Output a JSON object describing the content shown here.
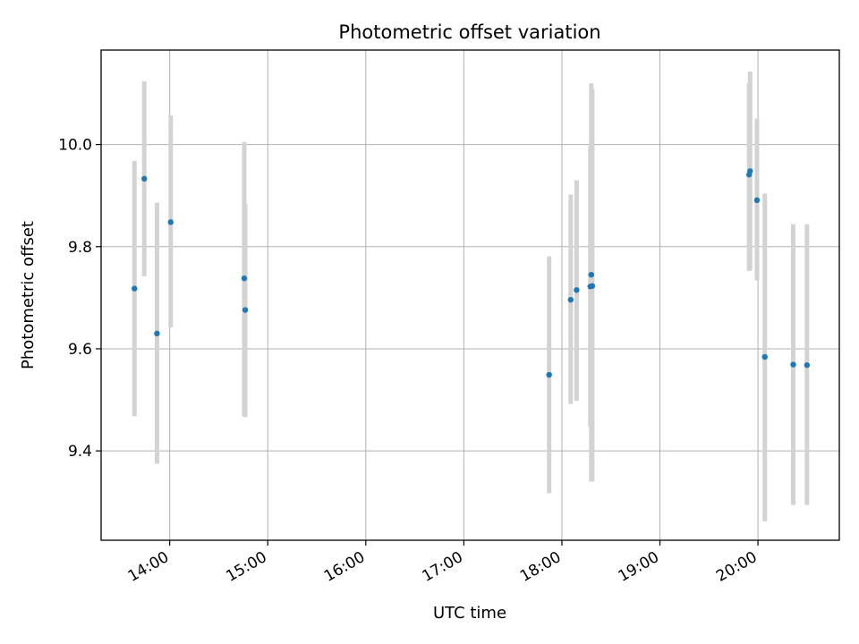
{
  "chart_data": {
    "type": "scatter",
    "title": "Photometric offset variation",
    "xlabel": "UTC time",
    "ylabel": "Photometric offset",
    "x_unit": "hours_utc",
    "xlim": [
      13.3,
      20.83
    ],
    "ylim": [
      9.225,
      10.185
    ],
    "grid": true,
    "x_ticks": [
      {
        "value": 14,
        "label": "14:00"
      },
      {
        "value": 15,
        "label": "15:00"
      },
      {
        "value": 16,
        "label": "16:00"
      },
      {
        "value": 17,
        "label": "17:00"
      },
      {
        "value": 18,
        "label": "18:00"
      },
      {
        "value": 19,
        "label": "19:00"
      },
      {
        "value": 20,
        "label": "20:00"
      }
    ],
    "y_ticks": [
      {
        "value": 9.4,
        "label": "9.4"
      },
      {
        "value": 9.6,
        "label": "9.6"
      },
      {
        "value": 9.8,
        "label": "9.8"
      },
      {
        "value": 10.0,
        "label": "10.0"
      }
    ],
    "colors": {
      "point": "#1f77b4",
      "errorbar": "#d3d3d3",
      "grid": "#b0b0b0"
    },
    "series": [
      {
        "name": "offset",
        "points": [
          {
            "x": 13.64,
            "y": 9.718,
            "err_low": 9.468,
            "err_high": 9.968
          },
          {
            "x": 13.74,
            "y": 9.933,
            "err_low": 9.742,
            "err_high": 10.124
          },
          {
            "x": 13.87,
            "y": 9.63,
            "err_low": 9.375,
            "err_high": 9.886
          },
          {
            "x": 14.01,
            "y": 9.848,
            "err_low": 9.642,
            "err_high": 10.057
          },
          {
            "x": 14.76,
            "y": 9.738,
            "err_low": 9.468,
            "err_high": 10.005
          },
          {
            "x": 14.77,
            "y": 9.676,
            "err_low": 9.466,
            "err_high": 9.883
          },
          {
            "x": 17.87,
            "y": 9.549,
            "err_low": 9.317,
            "err_high": 9.781
          },
          {
            "x": 18.09,
            "y": 9.696,
            "err_low": 9.492,
            "err_high": 9.902
          },
          {
            "x": 18.15,
            "y": 9.715,
            "err_low": 9.498,
            "err_high": 9.93
          },
          {
            "x": 18.29,
            "y": 9.722,
            "err_low": 9.447,
            "err_high": 9.995
          },
          {
            "x": 18.3,
            "y": 9.745,
            "err_low": 9.34,
            "err_high": 10.12
          },
          {
            "x": 18.31,
            "y": 9.723,
            "err_low": 9.34,
            "err_high": 10.108
          },
          {
            "x": 19.91,
            "y": 9.941,
            "err_low": 9.752,
            "err_high": 10.12
          },
          {
            "x": 19.92,
            "y": 9.948,
            "err_low": 9.755,
            "err_high": 10.143
          },
          {
            "x": 19.99,
            "y": 9.891,
            "err_low": 9.734,
            "err_high": 10.051
          },
          {
            "x": 20.07,
            "y": 9.584,
            "err_low": 9.262,
            "err_high": 9.904
          },
          {
            "x": 20.36,
            "y": 9.569,
            "err_low": 9.294,
            "err_high": 9.844
          },
          {
            "x": 20.5,
            "y": 9.568,
            "err_low": 9.294,
            "err_high": 9.844
          }
        ]
      }
    ]
  }
}
